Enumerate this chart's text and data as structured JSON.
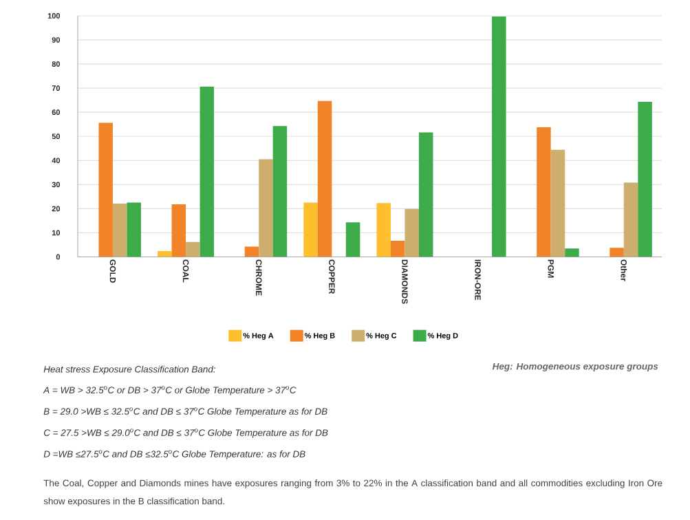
{
  "chart_data": {
    "type": "bar",
    "categories": [
      "GOLD",
      "COAL",
      "CHROME",
      "COPPER",
      "DIAMONDS",
      "IRON-ORE",
      "PGM",
      "Other"
    ],
    "series": [
      {
        "name": "% Heg A",
        "color": "#fdbf2d",
        "values": [
          null,
          2.4,
          null,
          22.5,
          22.3,
          null,
          null,
          null
        ]
      },
      {
        "name": "% Heg B",
        "color": "#f38328",
        "values": [
          55.6,
          21.8,
          4.3,
          64.7,
          6.7,
          null,
          53.8,
          3.8
        ]
      },
      {
        "name": "% Heg C",
        "color": "#cdae6c",
        "values": [
          22.1,
          6.2,
          40.5,
          null,
          19.9,
          null,
          44.4,
          30.8
        ]
      },
      {
        "name": "% Heg D",
        "color": "#3dab4a",
        "values": [
          22.5,
          70.6,
          54.3,
          14.3,
          51.6,
          99.7,
          3.5,
          64.3
        ]
      }
    ],
    "ylim": [
      0,
      100
    ],
    "yticks": [
      0,
      10,
      20,
      30,
      40,
      50,
      60,
      70,
      80,
      90,
      100
    ],
    "grid": "y",
    "legend": "bottom",
    "annotations": [
      "Heat stress Exposure Classification Band:",
      "A = WB > 32.5$^{o}$C or DB > 37$^{o}$C or Globe Temperature > 37$^{o}$C",
      "B = 29.0 >WB ≤ 32.5$^{o}$C and DB ≤ 37$^{o}$C Globe Temperature as for DB",
      "C = 27.5 >WB ≤ 29.0$^{o}$C and DB ≤ 37$^{o}$C Globe Temperature as for DB",
      "D =WB ≤27.5$^{o}$C and DB ≤32.5$^{o}$C Globe Temperature: as for DB",
      "Heg: Homogeneous exposure groups",
      "The Coal, Copper and Diamonds mines have exposures ranging from 3% to 22% in the A classification band and all commodities excluding Iron Ore show exposures in the B classification band."
    ]
  }
}
